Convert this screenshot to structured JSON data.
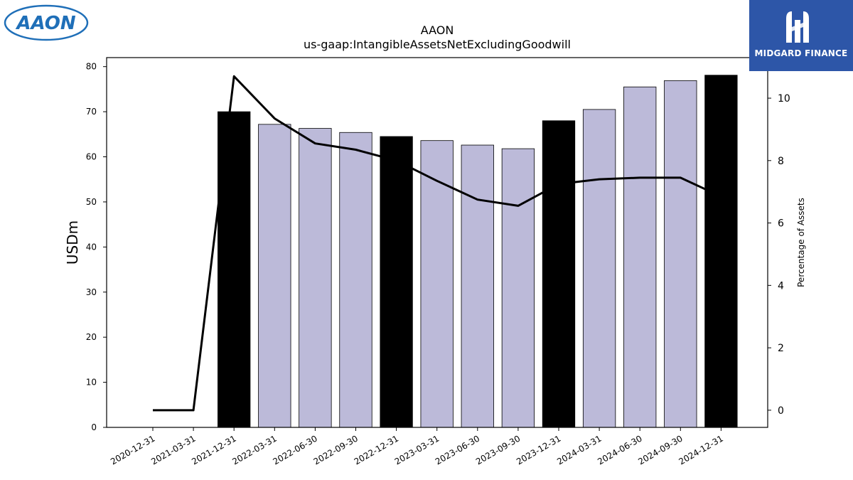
{
  "logos": {
    "left_text": "AAON",
    "right_text": "MIDGARD FINANCE"
  },
  "colors": {
    "bar_default": "#bcbad9",
    "bar_highlight": "#000000",
    "line": "#000000",
    "logo_blue": "#1f6fb8",
    "brand_panel": "#2d56a8"
  },
  "chart_data": {
    "type": "bar",
    "title": "AAON",
    "subtitle": "us-gaap:IntangibleAssetsNetExcludingGoodwill",
    "ylabel": "USDm",
    "y2label": "Percentage of Assets",
    "ylim": [
      0,
      82
    ],
    "y2lim": [
      -0.55,
      11.3
    ],
    "yticks": [
      0,
      10,
      20,
      30,
      40,
      50,
      60,
      70,
      80
    ],
    "y2ticks": [
      0,
      2,
      4,
      6,
      8,
      10
    ],
    "categories": [
      "2020-12-31",
      "2021-03-31",
      "2021-12-31",
      "2022-03-31",
      "2022-06-30",
      "2022-09-30",
      "2022-12-31",
      "2023-03-31",
      "2023-06-30",
      "2023-09-30",
      "2023-12-31",
      "2024-03-31",
      "2024-06-30",
      "2024-09-30",
      "2024-12-31"
    ],
    "series": [
      {
        "kind": "bar",
        "values": [
          null,
          null,
          70.0,
          67.2,
          66.3,
          65.4,
          64.5,
          63.6,
          62.6,
          61.8,
          68.0,
          70.5,
          75.5,
          76.9,
          78.1
        ],
        "highlight": [
          false,
          false,
          true,
          false,
          false,
          false,
          true,
          false,
          false,
          false,
          true,
          false,
          false,
          false,
          true
        ]
      },
      {
        "kind": "line",
        "axis": "right",
        "values": [
          0.0,
          0.0,
          10.7,
          9.35,
          8.55,
          8.35,
          8.0,
          7.35,
          6.75,
          6.55,
          7.25,
          7.4,
          7.45,
          7.45,
          6.85
        ]
      }
    ],
    "grid": false,
    "legend": "none"
  }
}
